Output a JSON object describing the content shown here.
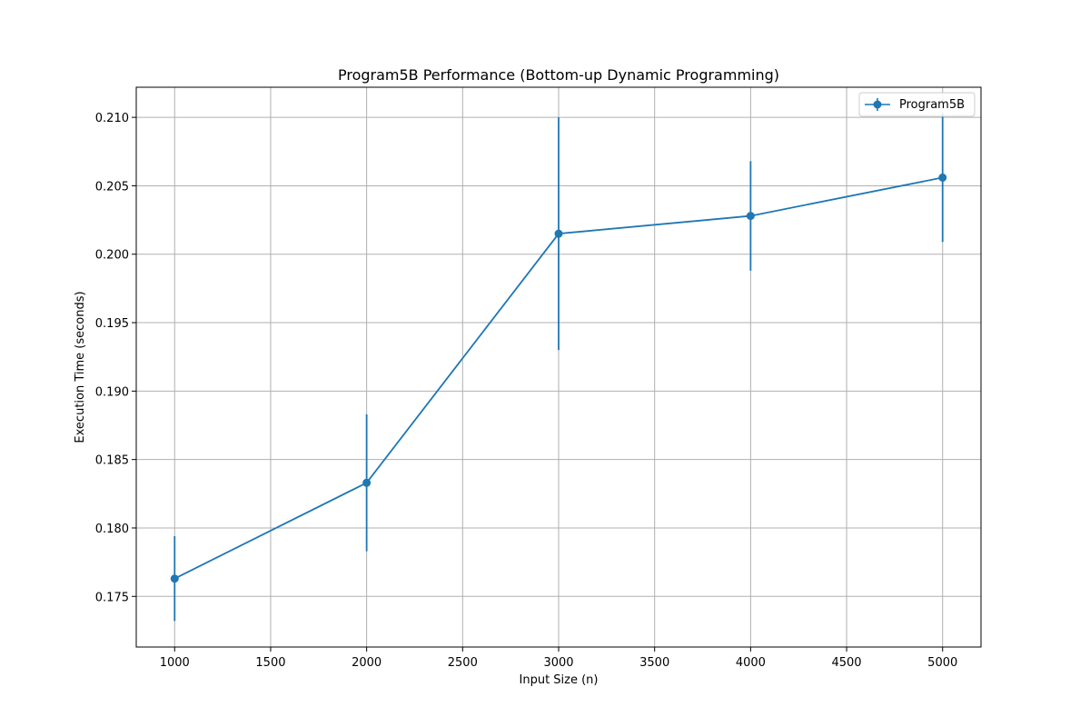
{
  "chart_data": {
    "type": "line",
    "title": "Program5B Performance (Bottom-up Dynamic Programming)",
    "xlabel": "Input Size (n)",
    "ylabel": "Execution Time (seconds)",
    "xlim": [
      800,
      5200
    ],
    "ylim": [
      0.1713,
      0.2122
    ],
    "x_ticks": [
      1000,
      1500,
      2000,
      2500,
      3000,
      3500,
      4000,
      4500,
      5000
    ],
    "y_ticks": [
      0.175,
      0.18,
      0.185,
      0.19,
      0.195,
      0.2,
      0.205,
      0.21
    ],
    "x_tick_labels": [
      "1000",
      "1500",
      "2000",
      "2500",
      "3000",
      "3500",
      "4000",
      "4500",
      "5000"
    ],
    "y_tick_labels": [
      "0.175",
      "0.180",
      "0.185",
      "0.190",
      "0.195",
      "0.200",
      "0.205",
      "0.210"
    ],
    "grid": true,
    "legend_position": "top-right",
    "series": [
      {
        "name": "Program5B",
        "color": "#1f77b4",
        "x": [
          1000,
          2000,
          3000,
          4000,
          5000
        ],
        "y": [
          0.1763,
          0.1833,
          0.2015,
          0.2028,
          0.2056
        ],
        "yerr": [
          0.0031,
          0.005,
          0.0085,
          0.004,
          0.0047
        ]
      }
    ]
  }
}
